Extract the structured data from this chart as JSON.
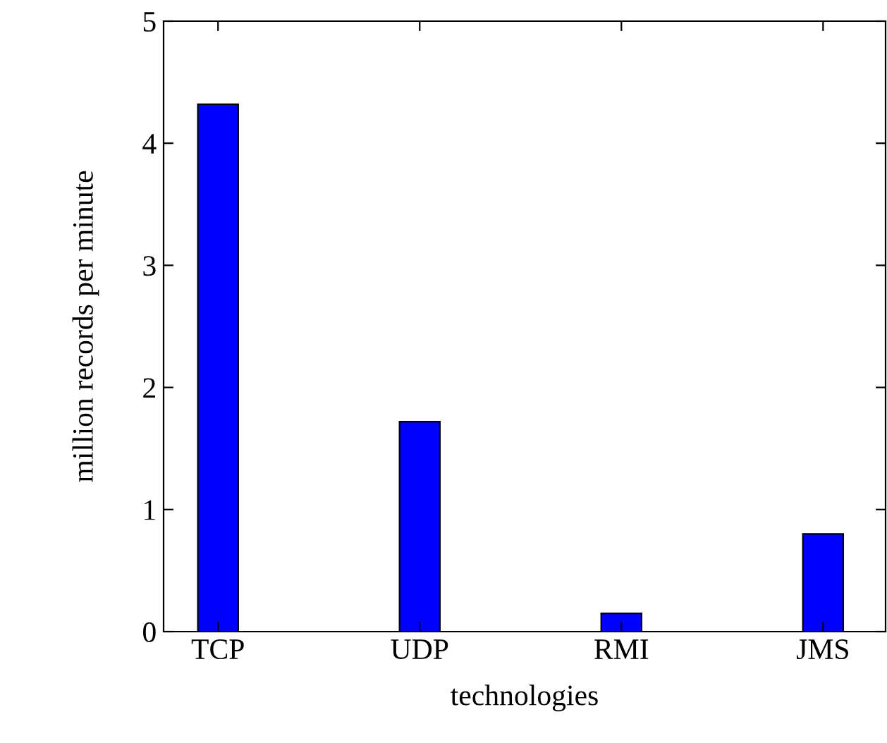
{
  "chart_data": {
    "type": "bar",
    "xlabel": "technologies",
    "ylabel": "million records per minute",
    "categories": [
      "TCP",
      "UDP",
      "RMI",
      "JMS"
    ],
    "values": [
      4.32,
      1.72,
      0.15,
      0.8
    ],
    "color": "#0000ff",
    "ylim": [
      0,
      5
    ],
    "yticks": [
      0,
      1,
      2,
      3,
      4,
      5
    ],
    "grid": false
  }
}
